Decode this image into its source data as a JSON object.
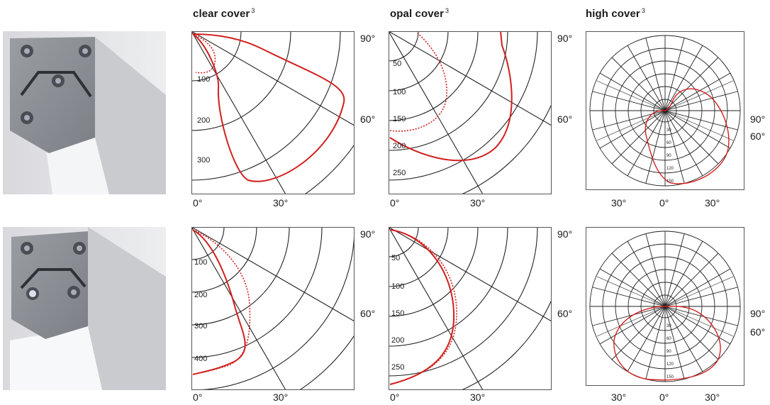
{
  "headers": {
    "clear": "clear cover",
    "opal": "opal cover",
    "high": "high cover",
    "footnote": "3"
  },
  "angle_labels": {
    "a0": "0°",
    "a30": "30°",
    "a60": "60°",
    "a90": "90°"
  },
  "panels": [
    {
      "id": "clear-top",
      "ring_labels": [
        "100",
        "200",
        "300"
      ]
    },
    {
      "id": "opal-top",
      "ring_labels": [
        "50",
        "100",
        "150",
        "200",
        "250"
      ]
    },
    {
      "id": "high-top",
      "ring_labels": [
        "30",
        "60",
        "90",
        "120",
        "150"
      ]
    },
    {
      "id": "clear-bottom",
      "ring_labels": [
        "100",
        "200",
        "300",
        "400"
      ]
    },
    {
      "id": "opal-bottom",
      "ring_labels": [
        "50",
        "100",
        "150",
        "200",
        "250"
      ]
    },
    {
      "id": "high-bottom",
      "ring_labels": [
        "30",
        "60",
        "90",
        "120",
        "150"
      ]
    }
  ],
  "colors": {
    "curve": "#d0201f",
    "grid": "#222222",
    "frame": "#555555"
  }
}
